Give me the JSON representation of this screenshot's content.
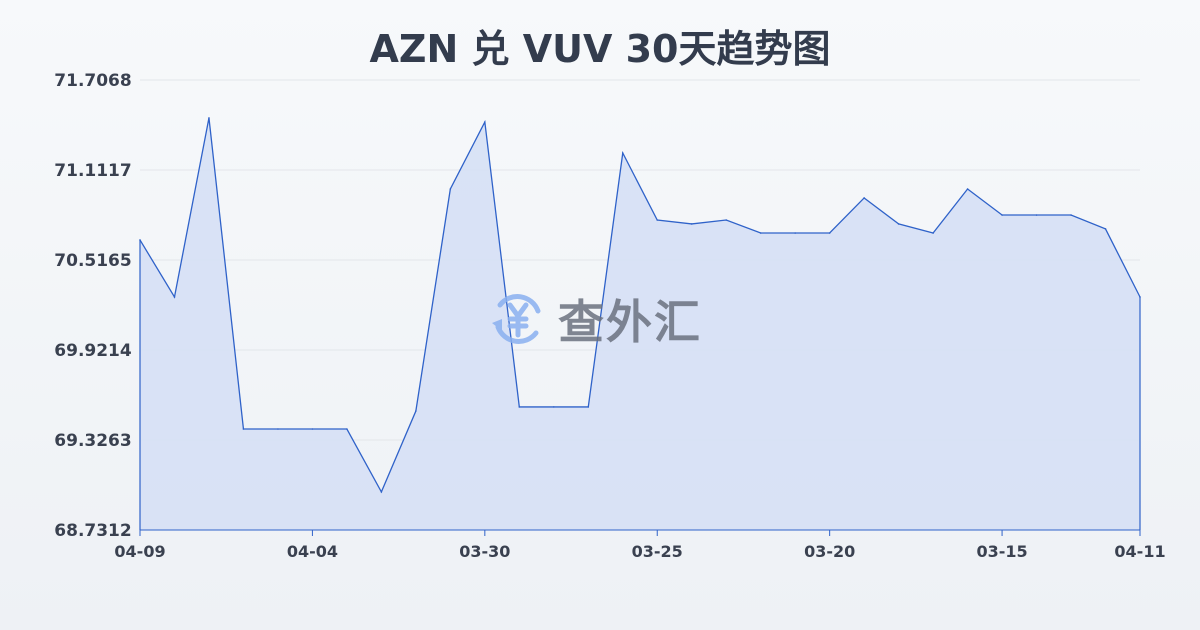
{
  "chart_data": {
    "type": "area",
    "title": "AZN 兑 VUV 30天趋势图",
    "xlabel": "",
    "ylabel": "",
    "x_tick_labels": [
      "04-09",
      "04-04",
      "03-30",
      "03-25",
      "03-20",
      "03-15",
      "04-11"
    ],
    "x_tick_indices": [
      0,
      5,
      10,
      15,
      20,
      25,
      29
    ],
    "y_ticks": [
      "71.7068",
      "71.1117",
      "70.5165",
      "69.9214",
      "69.3263",
      "68.7312"
    ],
    "ylim": [
      68.7312,
      71.7068
    ],
    "grid": true,
    "values": [
      70.649,
      70.272,
      71.456,
      69.399,
      69.399,
      69.399,
      69.399,
      68.983,
      69.518,
      70.986,
      71.429,
      69.545,
      69.545,
      69.545,
      71.224,
      70.781,
      70.755,
      70.781,
      70.695,
      70.695,
      70.695,
      70.927,
      70.755,
      70.695,
      70.986,
      70.814,
      70.814,
      70.814,
      70.722,
      70.272
    ],
    "colors": {
      "line": "#2f62c9",
      "fill": "#d6e0f5",
      "grid": "#e3e6ea"
    }
  },
  "watermark": {
    "text": "查外汇",
    "icon": "yen-exchange-icon"
  }
}
